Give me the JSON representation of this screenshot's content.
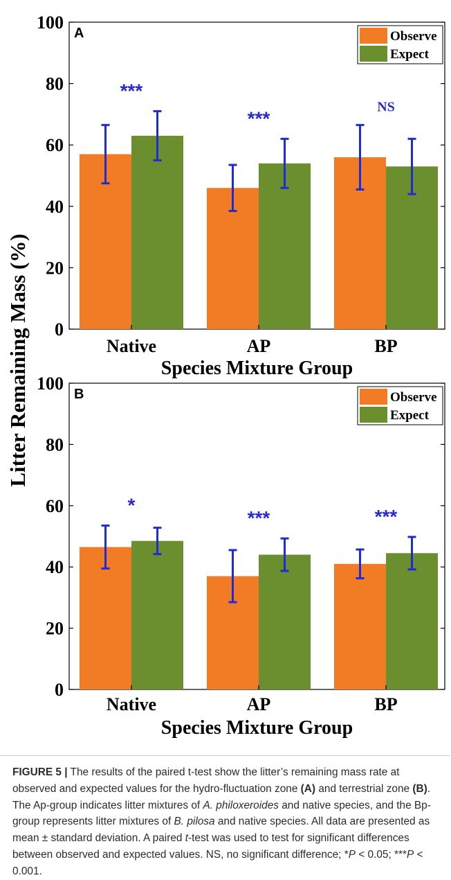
{
  "chart_data": [
    {
      "type": "bar",
      "panel_label": "A",
      "categories": [
        "Native",
        "AP",
        "BP"
      ],
      "series": [
        {
          "name": "Observe",
          "values": [
            57,
            46,
            56
          ],
          "errors": [
            9.5,
            7.5,
            10.5
          ]
        },
        {
          "name": "Expect",
          "values": [
            63,
            54,
            53
          ],
          "errors": [
            8,
            8,
            9
          ]
        }
      ],
      "significance": [
        "***",
        "***",
        "NS"
      ],
      "xlabel": "Species Mixture Group",
      "ylim": [
        0,
        100
      ],
      "yticks": [
        0,
        20,
        40,
        60,
        80,
        100
      ],
      "legend_position": "top-right",
      "grid": false
    },
    {
      "type": "bar",
      "panel_label": "B",
      "categories": [
        "Native",
        "AP",
        "BP"
      ],
      "series": [
        {
          "name": "Observe",
          "values": [
            46.5,
            37,
            41
          ],
          "errors": [
            7,
            8.5,
            4.7
          ]
        },
        {
          "name": "Expect",
          "values": [
            48.5,
            44,
            44.5
          ],
          "errors": [
            4.3,
            5.3,
            5.3
          ]
        }
      ],
      "significance": [
        "*",
        "***",
        "***"
      ],
      "xlabel": "Species Mixture Group",
      "ylim": [
        0,
        100
      ],
      "yticks": [
        0,
        20,
        40,
        60,
        80,
        100
      ],
      "legend_position": "top-right",
      "grid": false
    }
  ],
  "shared_ylabel": "Litter Remaining Mass (%)",
  "colors": {
    "observe": "#f27c26",
    "expect": "#6b8e2e",
    "error_bar": "#1f2bd6",
    "significance": "#2a2ad6"
  },
  "caption": {
    "label": "FIGURE 5 |",
    "segments": [
      {
        "text": " The results of the paired t-test show the litter’s remaining mass rate at observed and expected values for the hydro-fluctuation zone ",
        "style": "normal"
      },
      {
        "text": "(A)",
        "style": "bold"
      },
      {
        "text": " and terrestrial zone ",
        "style": "normal"
      },
      {
        "text": "(B)",
        "style": "bold"
      },
      {
        "text": ". The Ap-group indicates litter mixtures of ",
        "style": "normal"
      },
      {
        "text": "A. philoxeroides",
        "style": "italic"
      },
      {
        "text": " and native species, and the Bp-group represents litter mixtures of ",
        "style": "normal"
      },
      {
        "text": "B. pilosa",
        "style": "italic"
      },
      {
        "text": " and native species. All data are presented as mean ± standard deviation. A paired ",
        "style": "normal"
      },
      {
        "text": "t",
        "style": "italic"
      },
      {
        "text": "-test was used to test for significant differences between observed and expected values. NS, no significant difference; *",
        "style": "normal"
      },
      {
        "text": "P",
        "style": "italic"
      },
      {
        "text": " < 0.05; ***",
        "style": "normal"
      },
      {
        "text": "P",
        "style": "italic"
      },
      {
        "text": " < 0.001.",
        "style": "normal"
      }
    ]
  }
}
